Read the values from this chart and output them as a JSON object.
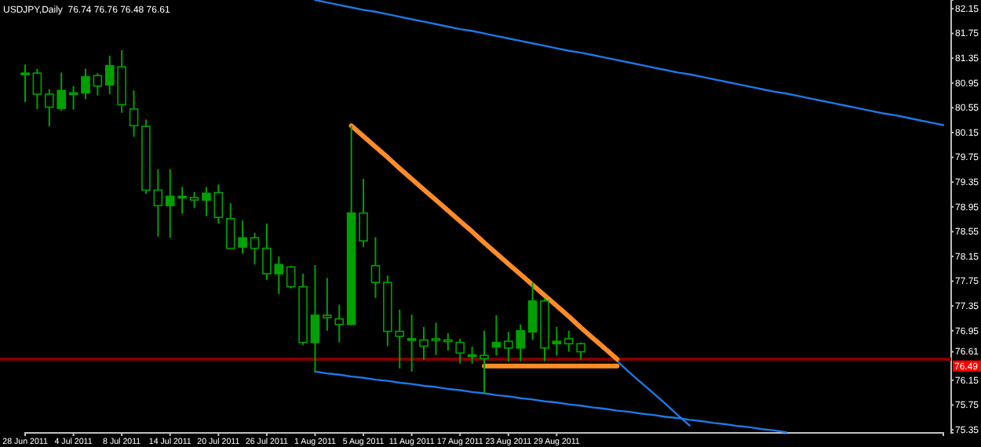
{
  "chart_data": {
    "type": "candlestick",
    "title": "USDJPY,Daily  76.74 76.76 76.48 76.61",
    "categories": [
      "28 Jun 2011",
      null,
      null,
      null,
      "4 Jul 2011",
      null,
      null,
      null,
      "8 Jul 2011",
      null,
      null,
      null,
      "14 Jul 2011",
      null,
      null,
      null,
      "20 Jul 2011",
      null,
      null,
      null,
      "26 Jul 2011",
      null,
      null,
      null,
      "1 Aug 2011",
      null,
      null,
      null,
      "5 Aug 2011",
      null,
      null,
      null,
      "11 Aug 2011",
      null,
      null,
      null,
      "17 Aug 2011",
      null,
      null,
      null,
      "23 Aug 2011",
      null,
      null,
      null,
      "29 Aug 2011",
      null,
      null,
      null,
      null,
      null,
      null,
      null,
      null,
      null,
      null,
      null,
      null,
      null,
      null,
      null,
      null,
      null,
      null,
      null,
      null,
      null,
      null,
      null,
      null,
      null,
      null,
      null,
      null,
      null,
      null,
      null,
      null
    ],
    "ohlc": [
      [
        81.11,
        81.25,
        80.64,
        81.11
      ],
      [
        81.11,
        81.18,
        80.53,
        80.77
      ],
      [
        80.77,
        80.85,
        80.25,
        80.56
      ],
      [
        80.54,
        81.12,
        80.5,
        80.83
      ],
      [
        80.79,
        80.9,
        80.52,
        80.79
      ],
      [
        80.79,
        81.18,
        80.69,
        81.05
      ],
      [
        81.07,
        81.11,
        80.75,
        80.9
      ],
      [
        80.92,
        81.39,
        80.77,
        81.23
      ],
      [
        81.21,
        81.48,
        80.47,
        80.6
      ],
      [
        80.53,
        80.83,
        80.08,
        80.26
      ],
      [
        80.25,
        80.36,
        79.16,
        79.22
      ],
      [
        79.22,
        79.56,
        78.47,
        78.97
      ],
      [
        78.97,
        79.56,
        78.45,
        79.12
      ],
      [
        79.12,
        79.27,
        78.84,
        79.12
      ],
      [
        79.1,
        79.19,
        78.93,
        79.06
      ],
      [
        79.06,
        79.27,
        78.8,
        79.17
      ],
      [
        79.18,
        79.31,
        78.68,
        78.78
      ],
      [
        78.76,
        79.01,
        78.28,
        78.28
      ],
      [
        78.3,
        78.73,
        78.19,
        78.45
      ],
      [
        78.45,
        78.53,
        78.02,
        78.28
      ],
      [
        78.28,
        78.68,
        77.77,
        77.87
      ],
      [
        77.87,
        78.15,
        77.54,
        78.02
      ],
      [
        77.98,
        78.0,
        77.63,
        77.66
      ],
      [
        77.66,
        77.87,
        76.72,
        76.76
      ],
      [
        76.76,
        78.01,
        76.28,
        77.2
      ],
      [
        77.2,
        77.8,
        76.95,
        77.16
      ],
      [
        77.14,
        77.37,
        76.76,
        77.05
      ],
      [
        77.05,
        80.26,
        77.05,
        78.85
      ],
      [
        78.85,
        79.4,
        78.3,
        78.4
      ],
      [
        78.0,
        78.46,
        77.48,
        77.73
      ],
      [
        77.73,
        77.84,
        76.7,
        76.94
      ],
      [
        76.94,
        77.29,
        76.34,
        76.86
      ],
      [
        76.82,
        77.21,
        76.29,
        76.82
      ],
      [
        76.8,
        77.01,
        76.48,
        76.7
      ],
      [
        76.82,
        77.08,
        76.56,
        76.8
      ],
      [
        76.8,
        76.91,
        76.63,
        76.78
      ],
      [
        76.76,
        76.82,
        76.42,
        76.59
      ],
      [
        76.56,
        76.69,
        76.42,
        76.56
      ],
      [
        76.55,
        76.95,
        75.94,
        76.5
      ],
      [
        76.69,
        77.2,
        76.55,
        76.76
      ],
      [
        76.78,
        76.93,
        76.45,
        76.67
      ],
      [
        76.67,
        77.05,
        76.46,
        76.95
      ],
      [
        76.93,
        77.73,
        76.8,
        77.43
      ],
      [
        77.43,
        77.48,
        76.46,
        76.67
      ],
      [
        76.74,
        77.01,
        76.55,
        76.78
      ],
      [
        76.82,
        76.95,
        76.61,
        76.74
      ],
      [
        76.74,
        76.76,
        76.48,
        76.61
      ],
      null,
      null,
      null,
      null,
      null,
      null,
      null,
      null,
      null,
      null,
      null,
      null,
      null,
      null,
      null,
      null,
      null,
      null,
      null,
      null,
      null,
      null,
      null,
      null,
      null,
      null,
      null,
      null,
      null,
      null
    ],
    "color": "#00a000",
    "series": [
      {
        "type": "line",
        "color": "#1e78e6",
        "values": [
          null,
          null,
          null,
          null,
          null,
          null,
          null,
          null,
          null,
          null,
          null,
          null,
          null,
          null,
          null,
          null,
          null,
          null,
          null,
          null,
          null,
          null,
          null,
          null,
          82.29,
          82.25,
          82.21,
          82.17,
          82.13,
          82.1,
          82.06,
          82.02,
          81.98,
          81.94,
          81.9,
          81.86,
          81.82,
          81.79,
          81.75,
          81.71,
          81.67,
          81.63,
          81.59,
          81.55,
          81.51,
          81.47,
          81.44,
          81.4,
          81.36,
          81.32,
          81.28,
          81.24,
          81.2,
          81.16,
          81.12,
          81.09,
          81.05,
          81.01,
          80.97,
          80.93,
          80.89,
          80.85,
          80.81,
          80.78,
          80.74,
          80.7,
          80.66,
          80.62,
          80.58,
          80.54,
          80.5,
          80.46,
          80.43,
          80.39,
          80.35,
          80.31,
          80.27
        ]
      },
      {
        "type": "line",
        "color": "#1e78e6",
        "values": [
          null,
          null,
          null,
          null,
          null,
          null,
          null,
          null,
          null,
          null,
          null,
          null,
          null,
          null,
          null,
          null,
          null,
          null,
          null,
          null,
          null,
          null,
          null,
          null,
          76.29,
          76.26,
          76.24,
          76.21,
          76.19,
          76.16,
          76.14,
          76.11,
          76.09,
          76.06,
          76.04,
          76.01,
          75.99,
          75.96,
          75.94,
          75.91,
          75.89,
          75.86,
          75.84,
          75.81,
          75.79,
          75.76,
          75.74,
          75.71,
          75.69,
          75.66,
          75.64,
          75.61,
          75.59,
          75.56,
          75.54,
          75.51,
          75.49,
          75.46,
          75.44,
          75.41,
          75.39,
          75.36,
          75.34,
          75.31,
          null,
          null,
          null,
          null,
          null,
          null,
          null,
          null,
          null,
          null,
          null,
          null,
          null
        ]
      },
      {
        "type": "line",
        "color": "#1e78e6",
        "values": [
          null,
          null,
          null,
          null,
          null,
          null,
          null,
          null,
          null,
          null,
          null,
          null,
          null,
          null,
          null,
          null,
          null,
          null,
          null,
          null,
          null,
          null,
          null,
          null,
          null,
          null,
          null,
          null,
          null,
          null,
          null,
          null,
          null,
          null,
          null,
          null,
          null,
          null,
          null,
          null,
          null,
          null,
          null,
          null,
          null,
          null,
          null,
          null,
          null,
          76.46,
          76.28,
          76.11,
          75.94,
          75.77,
          75.59,
          75.42,
          null,
          null,
          null,
          null,
          null,
          null,
          null,
          null,
          null,
          null,
          null,
          null,
          null,
          null,
          null,
          null,
          null,
          null,
          null,
          null,
          null
        ]
      },
      {
        "type": "line",
        "color": "#ff8c28",
        "values": [
          null,
          null,
          null,
          null,
          null,
          null,
          null,
          null,
          null,
          null,
          null,
          null,
          null,
          null,
          null,
          null,
          null,
          null,
          null,
          null,
          null,
          null,
          null,
          null,
          null,
          null,
          null,
          80.26,
          80.09,
          79.92,
          79.75,
          79.57,
          79.4,
          79.23,
          79.06,
          78.89,
          78.72,
          78.55,
          78.37,
          78.2,
          78.03,
          77.86,
          77.69,
          77.52,
          77.35,
          77.18,
          77.0,
          76.83,
          76.66,
          76.49,
          null,
          null,
          null,
          null,
          null,
          null,
          null,
          null,
          null,
          null,
          null,
          null,
          null,
          null,
          null,
          null,
          null,
          null,
          null,
          null,
          null,
          null,
          null,
          null,
          null,
          null,
          null
        ]
      },
      {
        "type": "line",
        "color": "#ff8c28",
        "values": [
          null,
          null,
          null,
          null,
          null,
          null,
          null,
          null,
          null,
          null,
          null,
          null,
          null,
          null,
          null,
          null,
          null,
          null,
          null,
          null,
          null,
          null,
          null,
          null,
          null,
          null,
          null,
          null,
          null,
          null,
          null,
          null,
          null,
          null,
          null,
          null,
          null,
          null,
          76.38,
          76.38,
          76.38,
          76.38,
          76.38,
          76.38,
          76.38,
          76.38,
          76.38,
          76.38,
          76.38,
          76.38,
          null,
          null,
          null,
          null,
          null,
          null,
          null,
          null,
          null,
          null,
          null,
          null,
          null,
          null,
          null,
          null,
          null,
          null,
          null,
          null,
          null,
          null,
          null,
          null,
          null,
          null,
          null
        ]
      }
    ],
    "ref_lines": [
      {
        "axis": "y",
        "value": 76.49,
        "label": "76.49",
        "color": "#800000"
      }
    ],
    "ylim": [
      75.3,
      82.29
    ],
    "yticks": [
      82.15,
      81.75,
      81.35,
      80.95,
      80.55,
      80.15,
      79.75,
      79.35,
      78.95,
      78.55,
      78.15,
      77.75,
      77.35,
      76.95,
      76.61,
      76.15,
      75.75,
      75.35
    ]
  }
}
